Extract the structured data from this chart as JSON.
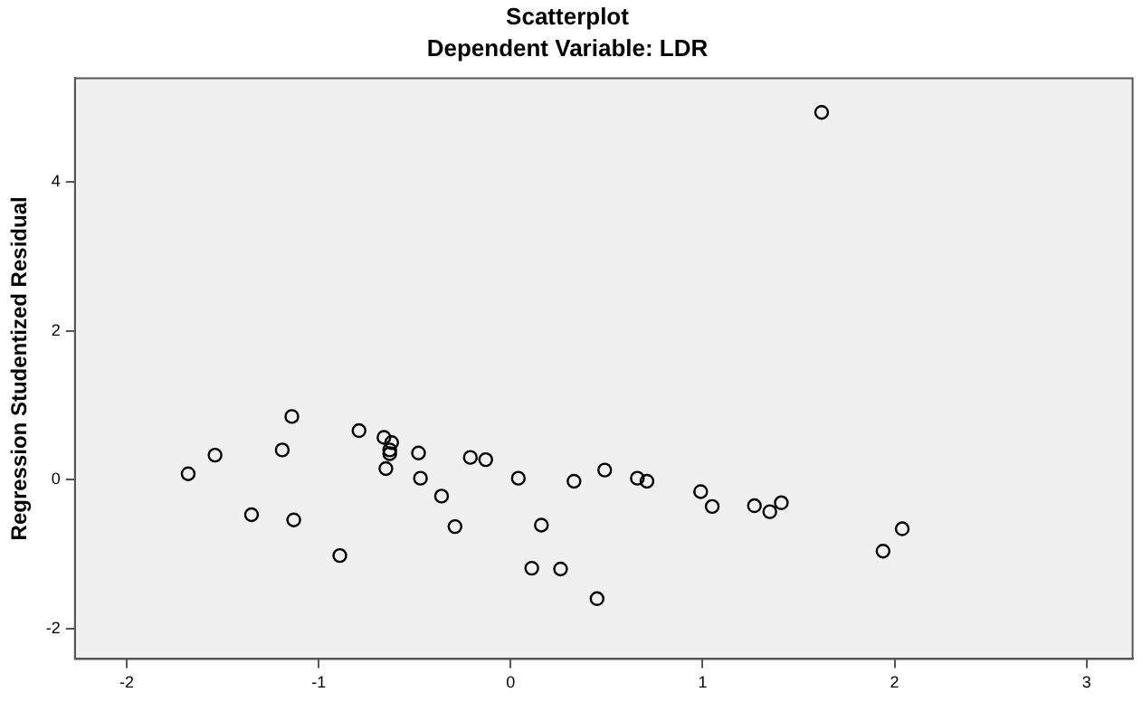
{
  "chart_data": {
    "type": "scatter",
    "title": "Scatterplot",
    "subtitle": "Dependent Variable: LDR",
    "ylabel": "Regression Studentized Residual",
    "x": [
      -1.68,
      -1.54,
      -1.35,
      -1.14,
      -1.19,
      -1.13,
      -0.89,
      -0.79,
      -0.66,
      -0.62,
      -0.63,
      -0.63,
      -0.65,
      -0.48,
      -0.47,
      -0.36,
      -0.29,
      -0.21,
      -0.13,
      0.04,
      0.16,
      0.11,
      0.26,
      0.33,
      0.45,
      0.49,
      0.66,
      0.71,
      0.99,
      1.05,
      1.27,
      1.35,
      1.41,
      1.94,
      2.04,
      1.62
    ],
    "values": [
      0.08,
      0.33,
      -0.47,
      0.85,
      0.4,
      -0.54,
      -1.02,
      0.66,
      0.57,
      0.5,
      0.4,
      0.35,
      0.15,
      0.36,
      0.02,
      -0.22,
      -0.63,
      0.3,
      0.27,
      0.02,
      -0.61,
      -1.19,
      -1.2,
      -0.02,
      -1.6,
      0.13,
      0.02,
      -0.02,
      -0.16,
      -0.36,
      -0.35,
      -0.43,
      -0.31,
      -0.96,
      -0.66,
      4.94
    ],
    "color": "#000000",
    "marker": "circle",
    "grid": false,
    "legend": false,
    "xlim": [
      -2.27,
      3.24
    ],
    "xticks": [
      -2,
      -1,
      0,
      1,
      2,
      3
    ],
    "ylim": [
      -2.41,
      5.4
    ],
    "yticks": [
      -2,
      0,
      2,
      4
    ]
  }
}
